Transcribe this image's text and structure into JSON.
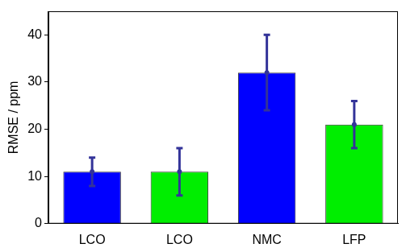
{
  "chart_data": {
    "type": "bar",
    "y_label": "RMSE / ppm",
    "categories": [
      "LCO",
      "LCO",
      "NMC",
      "LFP"
    ],
    "values": [
      11,
      11,
      32,
      21
    ],
    "errors": [
      3,
      5,
      8,
      5
    ],
    "colors": [
      "#0000ff",
      "#00ee00",
      "#0000ff",
      "#00ee00"
    ],
    "ylim": [
      0,
      45
    ],
    "yticks": [
      0,
      10,
      20,
      30,
      40
    ],
    "grid": false
  }
}
